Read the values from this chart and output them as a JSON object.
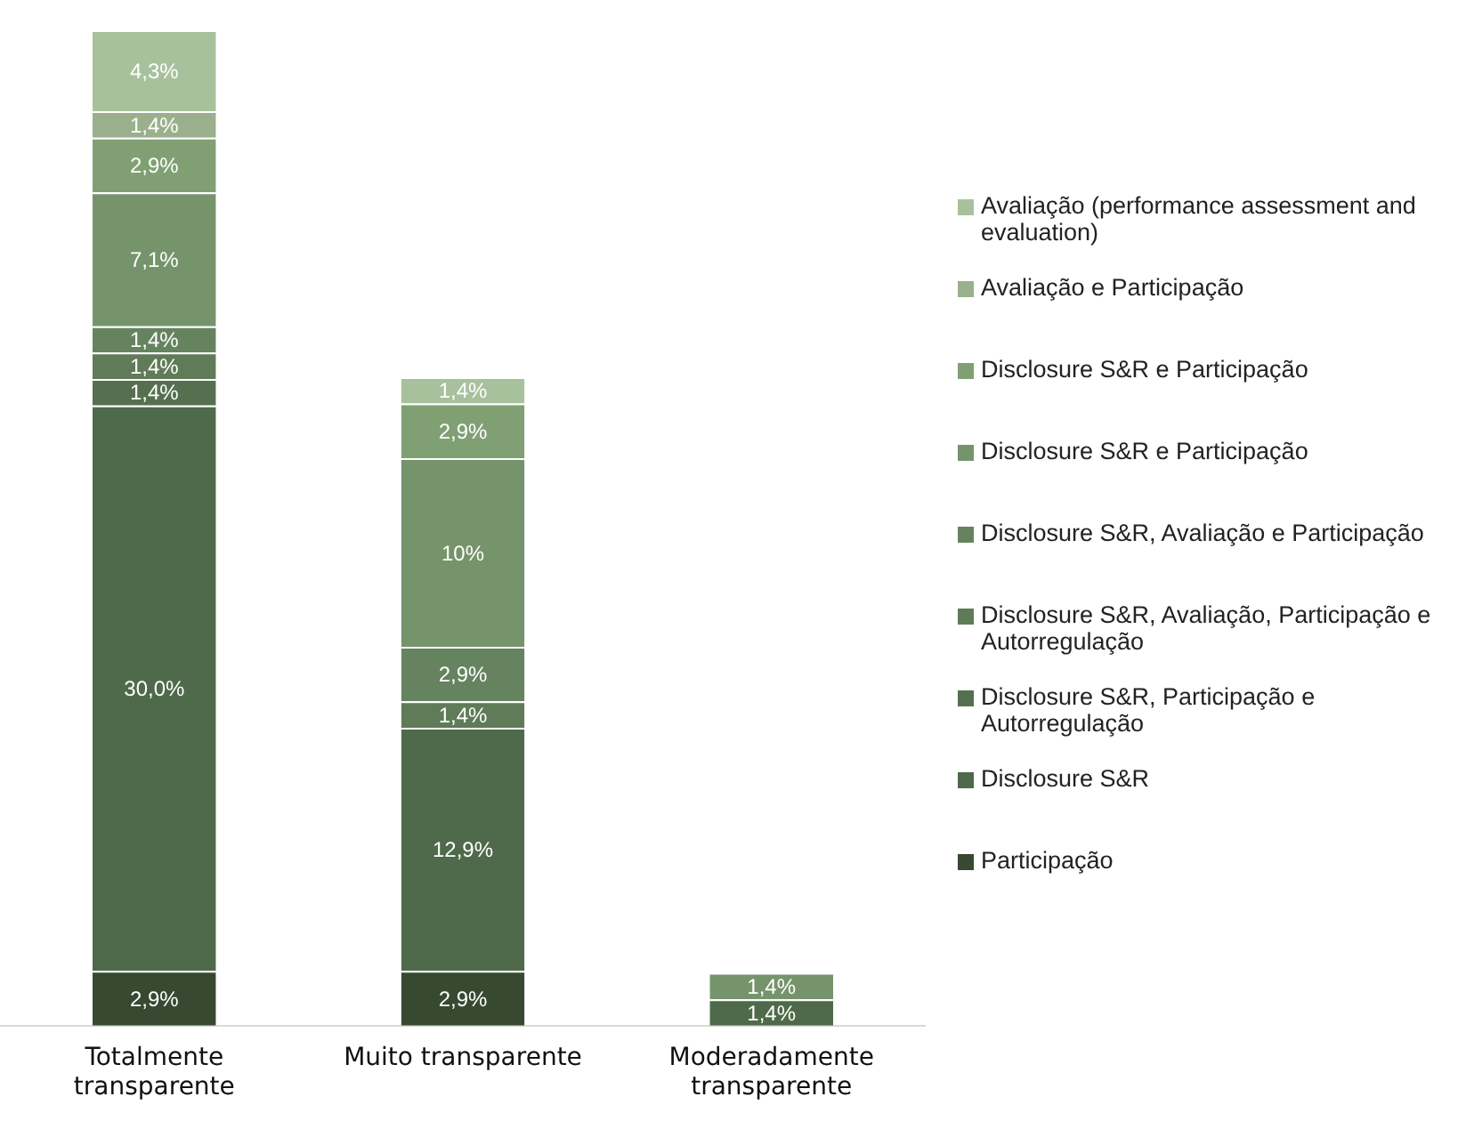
{
  "chart_data": {
    "type": "bar",
    "stacked": true,
    "categories": [
      "Totalmente transparente",
      "Muito transparente",
      "Moderadamente transparente"
    ],
    "legend": "right",
    "grid": false,
    "tick_labels": "x",
    "series": [
      {
        "name": "Participação",
        "color": "#374a31",
        "values": [
          2.9,
          2.9,
          null
        ],
        "value_labels": [
          "2,9%",
          "2,9%",
          null
        ]
      },
      {
        "name": "Disclosure S&R",
        "color": "#4f6a4a",
        "values": [
          30.0,
          12.9,
          1.4
        ],
        "value_labels": [
          "30,0%",
          "12,9%",
          "1,4%"
        ]
      },
      {
        "name": "Disclosure S&R, Participação e Autorregulação",
        "color": "#56704f",
        "values": [
          1.4,
          null,
          null
        ],
        "value_labels": [
          "1,4%",
          null,
          null
        ]
      },
      {
        "name": "Disclosure S&R, Avaliação, Participação e Autorregulação",
        "color": "#5f7b57",
        "values": [
          1.4,
          1.4,
          null
        ],
        "value_labels": [
          "1,4%",
          "1,4%",
          null
        ]
      },
      {
        "name": "Disclosure S&R, Avaliação e Participação",
        "color": "#66835f",
        "values": [
          1.4,
          2.9,
          null
        ],
        "value_labels": [
          "1,4%",
          "2,9%",
          null
        ]
      },
      {
        "name": "Disclosure S&R e Participação",
        "color": "#75946b",
        "values": [
          7.1,
          10,
          1.4
        ],
        "value_labels": [
          "7,1%",
          "10%",
          "1,4%"
        ]
      },
      {
        "name": "Disclosure S&R e Participação",
        "color": "#80a074",
        "values": [
          2.9,
          2.9,
          null
        ],
        "value_labels": [
          "2,9%",
          "2,9%",
          null
        ]
      },
      {
        "name": "Avaliação e Participação",
        "color": "#9ab08c",
        "values": [
          1.4,
          null,
          null
        ],
        "value_labels": [
          "1,4%",
          null,
          null
        ]
      },
      {
        "name": "Avaliação (performance assessment and evaluation)",
        "color": "#a7c19c",
        "values": [
          4.3,
          1.4,
          null
        ],
        "value_labels": [
          "4,3%",
          "1,4%",
          null
        ]
      }
    ]
  }
}
